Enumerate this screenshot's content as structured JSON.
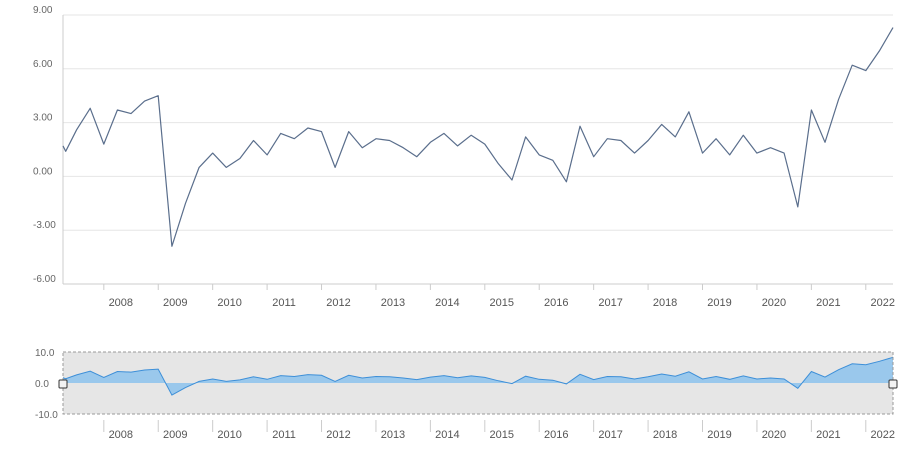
{
  "chart_data": {
    "type": "line",
    "title": "",
    "xlabel": "",
    "ylabel": "",
    "grid": true,
    "colors": {
      "line": "#5a6e8c",
      "navigator_line": "#3d8fd8",
      "navigator_fill": "#8cc2ec",
      "navigator_mask": "#e6e6e6",
      "grid": "#e6e6e6",
      "axis": "#cccccc"
    },
    "main": {
      "ylim": [
        -6,
        9
      ],
      "yticks": [
        "9.00",
        "6.00",
        "3.00",
        "0.00",
        "-3.00",
        "-6.00"
      ],
      "ytick_values": [
        9,
        6,
        3,
        0,
        -3,
        -6
      ]
    },
    "navigator": {
      "ylim": [
        -10,
        10
      ],
      "yticks": [
        "10.0",
        "0.0",
        "-10.0"
      ],
      "ytick_values": [
        10,
        0,
        -10
      ]
    },
    "xlim": [
      2007.25,
      2022.5
    ],
    "xticks": [
      "2008",
      "2009",
      "2010",
      "2011",
      "2012",
      "2013",
      "2014",
      "2015",
      "2016",
      "2017",
      "2018",
      "2019",
      "2020",
      "2021",
      "2022"
    ],
    "xtick_values": [
      2008,
      2009,
      2010,
      2011,
      2012,
      2013,
      2014,
      2015,
      2016,
      2017,
      2018,
      2019,
      2020,
      2021,
      2022
    ],
    "series": [
      {
        "x": [
          2007.25,
          2007.3,
          2007.5,
          2007.75,
          2008.0,
          2008.25,
          2008.5,
          2008.75,
          2009.0,
          2009.25,
          2009.5,
          2009.75,
          2010.0,
          2010.25,
          2010.5,
          2010.75,
          2011.0,
          2011.25,
          2011.5,
          2011.75,
          2012.0,
          2012.25,
          2012.5,
          2012.75,
          2013.0,
          2013.25,
          2013.5,
          2013.75,
          2014.0,
          2014.25,
          2014.5,
          2014.75,
          2015.0,
          2015.25,
          2015.5,
          2015.75,
          2016.0,
          2016.25,
          2016.5,
          2016.75,
          2017.0,
          2017.25,
          2017.5,
          2017.75,
          2018.0,
          2018.25,
          2018.5,
          2018.75,
          2019.0,
          2019.25,
          2019.5,
          2019.75,
          2020.0,
          2020.25,
          2020.5,
          2020.75,
          2021.0,
          2021.25,
          2021.5,
          2021.75,
          2022.0,
          2022.25,
          2022.5
        ],
        "values": [
          1.7,
          1.4,
          2.6,
          3.8,
          1.8,
          3.7,
          3.5,
          4.2,
          4.5,
          -3.9,
          -1.5,
          0.5,
          1.3,
          0.5,
          1.0,
          2.0,
          1.2,
          2.4,
          2.1,
          2.7,
          2.5,
          0.5,
          2.5,
          1.6,
          2.1,
          2.0,
          1.6,
          1.1,
          1.9,
          2.4,
          1.7,
          2.3,
          1.8,
          0.7,
          -0.2,
          2.2,
          1.2,
          0.9,
          -0.3,
          2.8,
          1.1,
          2.1,
          2.0,
          1.3,
          2.0,
          2.9,
          2.2,
          3.6,
          1.3,
          2.1,
          1.2,
          2.3,
          1.3,
          1.6,
          1.3,
          -1.7,
          3.7,
          1.9,
          4.3,
          6.2,
          5.9,
          7.0,
          8.3
        ]
      }
    ]
  }
}
